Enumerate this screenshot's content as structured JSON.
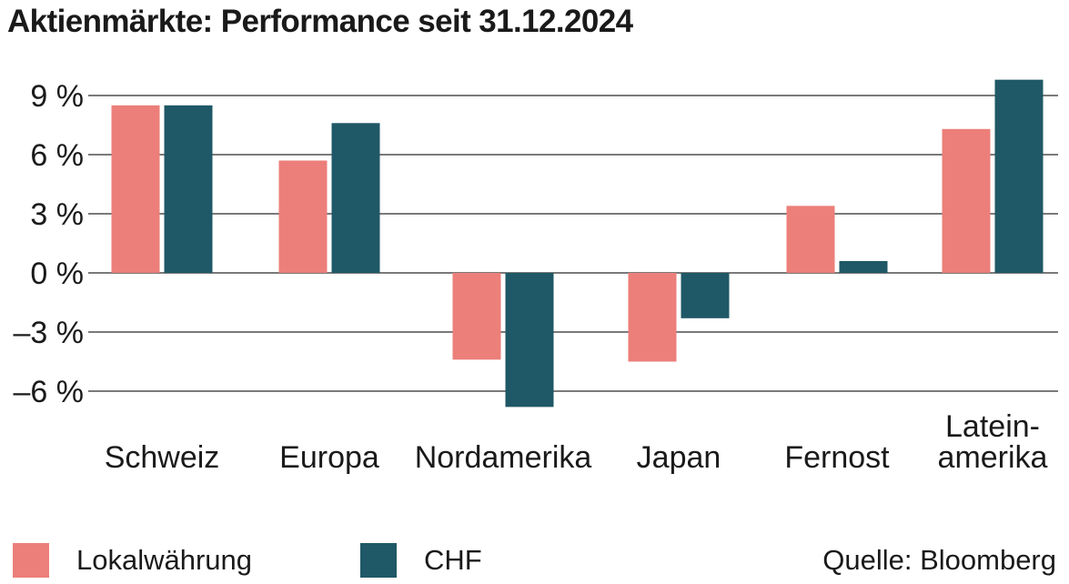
{
  "chart_data": {
    "type": "bar",
    "title": "Aktienmärkte: Performance seit 31.12.2024",
    "categories": [
      "Schweiz",
      "Europa",
      "Nordamerika",
      "Japan",
      "Fernost",
      "Latein-amerika"
    ],
    "series": [
      {
        "name": "Lokalwährung",
        "color": "#ec7f7a",
        "values": [
          8.5,
          5.7,
          -4.4,
          -4.5,
          3.4,
          7.3
        ]
      },
      {
        "name": "CHF",
        "color": "#1f5866",
        "values": [
          8.5,
          7.6,
          -6.8,
          -2.3,
          0.6,
          9.8
        ]
      }
    ],
    "yticks": [
      9,
      6,
      3,
      0,
      -3,
      -6
    ],
    "ytick_labels": [
      "9 %",
      "6 %",
      "3 %",
      "0 %",
      "–3 %",
      "–6 %"
    ],
    "ylim": [
      -7.2,
      10.5
    ],
    "grid": true,
    "legend_position": "bottom-left"
  },
  "source": "Quelle: Bloomberg"
}
